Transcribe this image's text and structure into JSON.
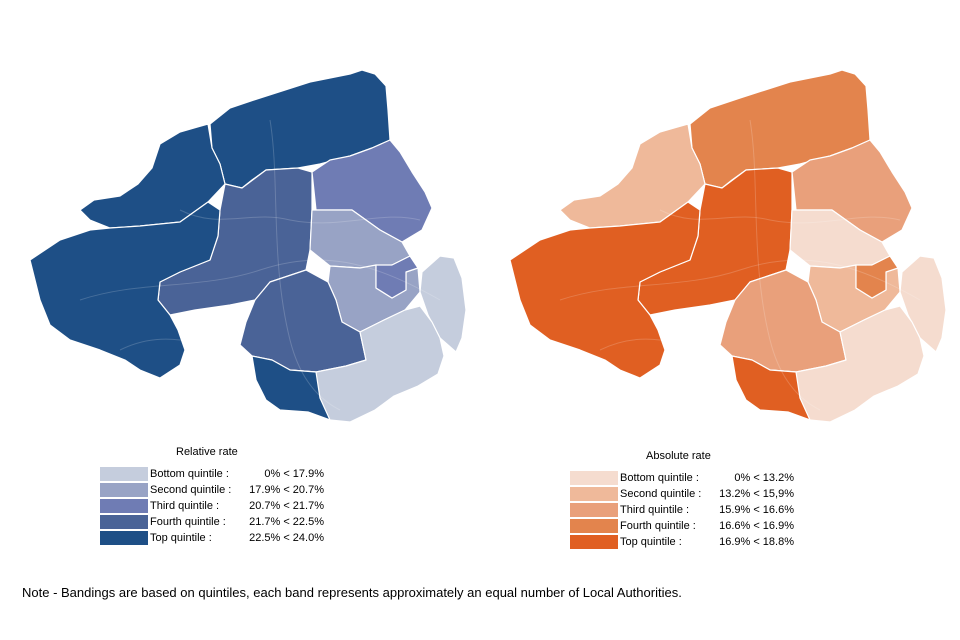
{
  "maps": [
    {
      "legend_title": "Relative rate",
      "bands": [
        {
          "label": "Bottom quintile :",
          "range": "0% < 17.9%",
          "color": "#c5cddd"
        },
        {
          "label": "Second quintile :",
          "range": "17.9% < 20.7%",
          "color": "#98a3c5"
        },
        {
          "label": "Third  quintile :",
          "range": "20.7% < 21.7%",
          "color": "#6f7cb4"
        },
        {
          "label": "Fourth quintile :",
          "range": "21.7% < 22.5%",
          "color": "#4a6397"
        },
        {
          "label": "Top quintile :",
          "range": "22.5% < 24.0%",
          "color": "#1e4f86"
        }
      ],
      "region_bands": [
        4,
        4,
        3,
        2,
        1,
        1,
        2,
        0,
        3,
        0,
        4,
        4
      ]
    },
    {
      "legend_title": "Absolute rate",
      "bands": [
        {
          "label": "Bottom quintile :",
          "range": "0% < 13.2%",
          "color": "#f5dccf"
        },
        {
          "label": "Second quintile :",
          "range": "13.2% < 15,9%",
          "color": "#efb99a"
        },
        {
          "label": "Third  quintile :",
          "range": "15.9% < 16.6%",
          "color": "#e9a07b"
        },
        {
          "label": "Fourth quintile :",
          "range": "16.6% < 16.9%",
          "color": "#e3844d"
        },
        {
          "label": "Top quintile :",
          "range": "16.9% < 18.8%",
          "color": "#e05f22"
        }
      ],
      "region_bands": [
        3,
        1,
        4,
        2,
        0,
        1,
        3,
        0,
        2,
        0,
        4,
        4
      ]
    }
  ],
  "note": "Note - Bandings are based on quintiles, each band represents approximately  an equal number  of Local Authorities."
}
